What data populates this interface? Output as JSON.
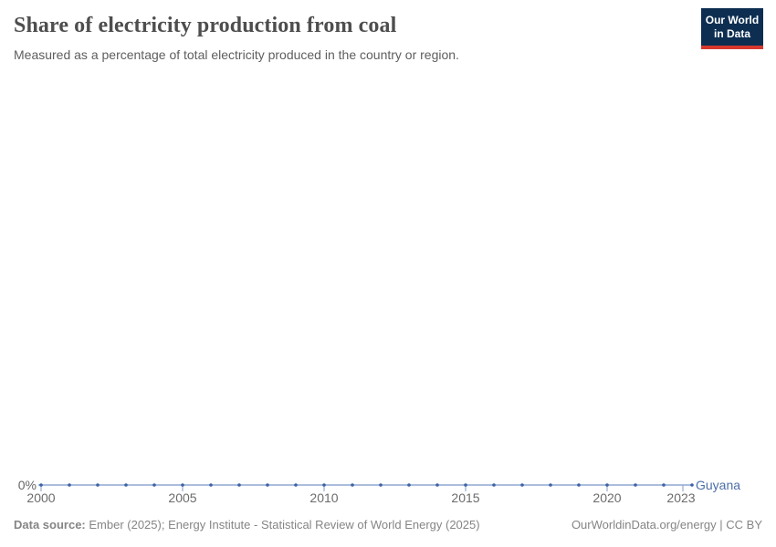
{
  "header": {
    "title": "Share of electricity production from coal",
    "subtitle": "Measured as a percentage of total electricity produced in the country or region."
  },
  "logo": {
    "line1": "Our World",
    "line2": "in Data",
    "background_color": "#0d2e51",
    "accent_color": "#d7382e"
  },
  "chart": {
    "y_axis_zero_label": "0%",
    "entity_label": "Guyana"
  },
  "chart_data": {
    "type": "line",
    "title": "Share of electricity production from coal",
    "subtitle": "Measured as a percentage of total electricity produced in the country or region.",
    "x": [
      2000,
      2001,
      2002,
      2003,
      2004,
      2005,
      2006,
      2007,
      2008,
      2009,
      2010,
      2011,
      2012,
      2013,
      2014,
      2015,
      2016,
      2017,
      2018,
      2019,
      2020,
      2021,
      2022,
      2023
    ],
    "series": [
      {
        "name": "Guyana",
        "values": [
          0,
          0,
          0,
          0,
          0,
          0,
          0,
          0,
          0,
          0,
          0,
          0,
          0,
          0,
          0,
          0,
          0,
          0,
          0,
          0,
          0,
          0,
          0,
          0
        ],
        "unit": "%"
      }
    ],
    "x_ticks": [
      2000,
      2005,
      2010,
      2015,
      2020,
      2023
    ],
    "ylim": [
      0,
      0
    ],
    "y_tick_labels": [
      "0%"
    ],
    "grid": false,
    "legend_position": "end-of-line",
    "markers": true,
    "colors": {
      "line": "#8fa8d0",
      "marker": "#3d63a4",
      "tick": "#9fb2d2",
      "entity_label": "#4c6fa8",
      "axis_text": "#6b6b6b"
    }
  },
  "footer": {
    "source_label": "Data source:",
    "source_text": " Ember (2025); Energy Institute - Statistical Review of World Energy (2025)",
    "credit_text": "OurWorldinData.org/energy | CC BY"
  }
}
